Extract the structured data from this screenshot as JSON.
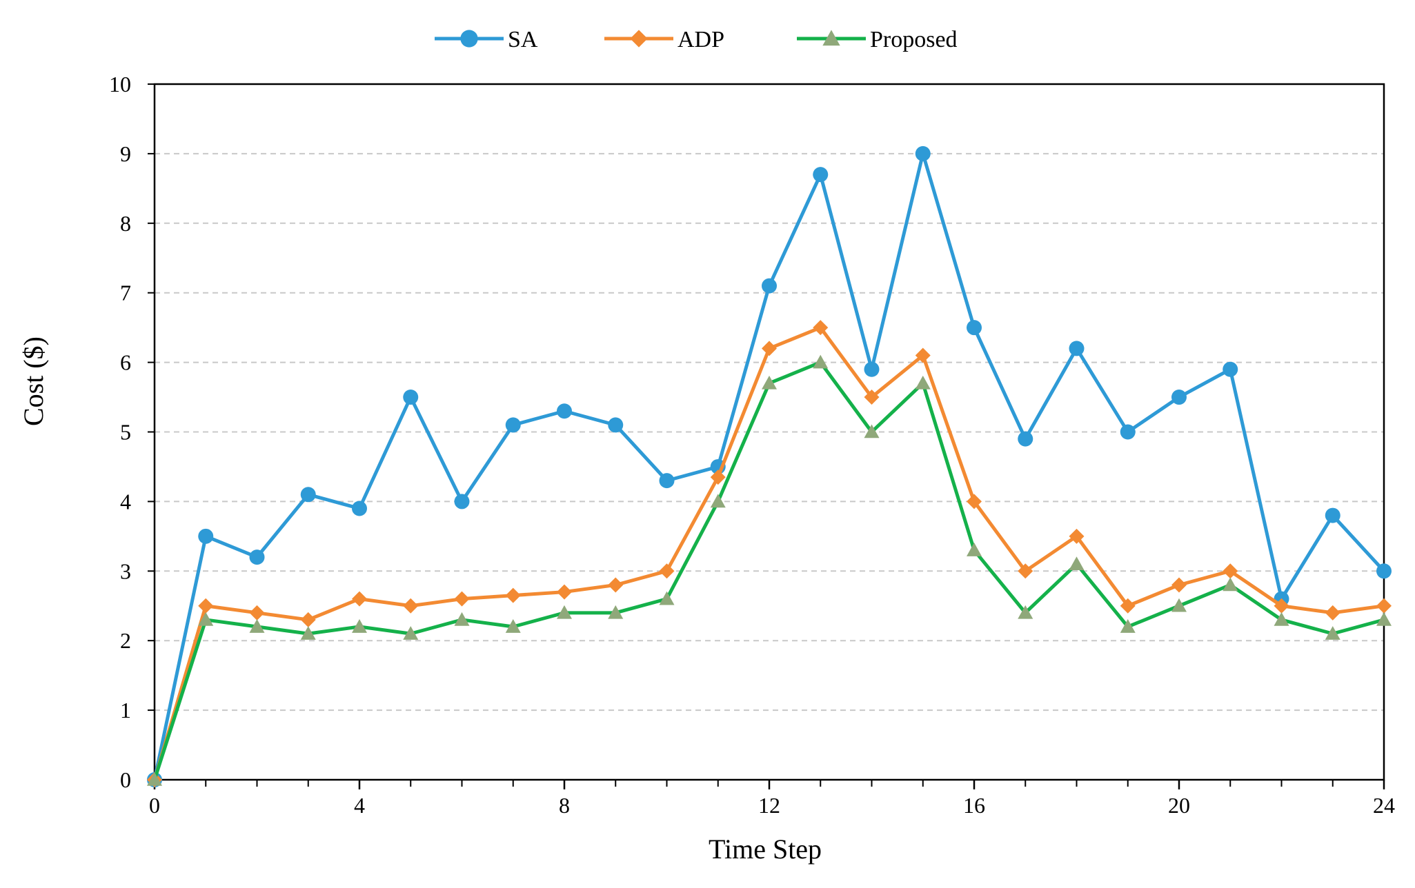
{
  "chart_data": {
    "type": "line",
    "title": "",
    "xlabel": "Time Step",
    "ylabel": "Cost ($)",
    "xlim": [
      0,
      24
    ],
    "ylim": [
      0,
      10
    ],
    "xticks": [
      0,
      4,
      8,
      12,
      16,
      20,
      24
    ],
    "yticks": [
      0,
      1,
      2,
      3,
      4,
      5,
      6,
      7,
      8,
      9,
      10
    ],
    "grid": "horizontal dashed",
    "legend_position": "top-center",
    "x": [
      0,
      1,
      2,
      3,
      4,
      5,
      6,
      7,
      8,
      9,
      10,
      11,
      12,
      13,
      14,
      15,
      16,
      17,
      18,
      19,
      20,
      21,
      22,
      23,
      24
    ],
    "series": [
      {
        "name": "SA",
        "color": "#2E9AD6",
        "marker": "circle",
        "values": [
          0,
          3.5,
          3.2,
          4.1,
          3.9,
          5.5,
          4.0,
          5.1,
          5.3,
          5.1,
          4.3,
          4.5,
          7.1,
          8.7,
          5.9,
          9.0,
          6.5,
          4.9,
          6.2,
          5.0,
          5.5,
          5.9,
          2.6,
          3.8,
          3.0
        ]
      },
      {
        "name": "ADP",
        "color": "#F38A32",
        "marker": "diamond",
        "values": [
          0,
          2.5,
          2.4,
          2.3,
          2.6,
          2.5,
          2.6,
          2.65,
          2.7,
          2.8,
          3.0,
          4.35,
          6.2,
          6.5,
          5.5,
          6.1,
          4.0,
          3.0,
          3.5,
          2.5,
          2.8,
          3.0,
          2.5,
          2.4,
          2.5
        ]
      },
      {
        "name": "Proposed",
        "color": "#14B14A",
        "marker": "triangle",
        "marker_color": "#8FA87A",
        "values": [
          0,
          2.3,
          2.2,
          2.1,
          2.2,
          2.1,
          2.3,
          2.2,
          2.4,
          2.4,
          2.6,
          4.0,
          5.7,
          6.0,
          5.0,
          5.7,
          3.3,
          2.4,
          3.1,
          2.2,
          2.5,
          2.8,
          2.3,
          2.1,
          2.3
        ]
      }
    ]
  }
}
